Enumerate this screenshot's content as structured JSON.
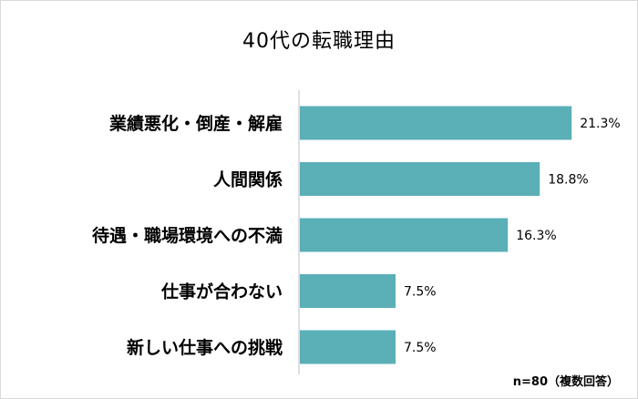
{
  "chart_data": {
    "type": "bar",
    "orientation": "horizontal",
    "title": "40代の転職理由",
    "categories": [
      "業績悪化・倒産・解雇",
      "人間関係",
      "待遇・職場環境への不満",
      "仕事が合わない",
      "新しい仕事への挑戦"
    ],
    "values": [
      21.3,
      18.8,
      16.3,
      7.5,
      7.5
    ],
    "value_labels": [
      "21.3%",
      "18.8%",
      "16.3%",
      "7.5%",
      "7.5%"
    ],
    "unit": "%",
    "xlim": [
      0,
      25
    ],
    "grid": false,
    "legend": "none",
    "bar_color": "#5BAFB6",
    "note": "n=80（複数回答）"
  }
}
